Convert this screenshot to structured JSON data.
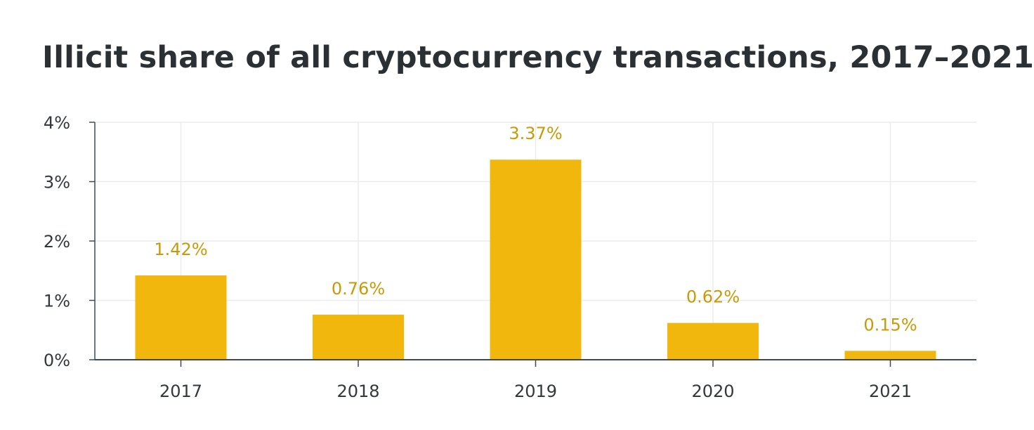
{
  "chart_data": {
    "type": "bar",
    "title": "Illicit share of all cryptocurrency transactions, 2017–2021",
    "xlabel": "",
    "ylabel": "",
    "categories": [
      "2017",
      "2018",
      "2019",
      "2020",
      "2021"
    ],
    "values": [
      1.42,
      0.76,
      3.37,
      0.62,
      0.15
    ],
    "value_labels": [
      "1.42%",
      "0.76%",
      "3.37%",
      "0.62%",
      "0.15%"
    ],
    "ylim": [
      0,
      4
    ],
    "y_ticks": [
      0,
      1,
      2,
      3,
      4
    ],
    "y_tick_labels": [
      "0%",
      "1%",
      "2%",
      "3%",
      "4%"
    ],
    "grid": true,
    "legend": "none",
    "colors": {
      "bar": "#f2b70d",
      "value_label": "#c99a07",
      "axis": "#3d4a52",
      "grid": "#ececec",
      "title": "#2b3034"
    }
  }
}
